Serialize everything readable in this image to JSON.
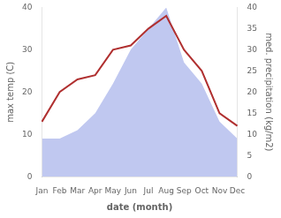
{
  "chart_data": {
    "type": "line",
    "xlabel": "date (month)",
    "ylabel": "max temp (C)",
    "y2label": "med. precipitation (kg/m2)",
    "categories": [
      "Jan",
      "Feb",
      "Mar",
      "Apr",
      "May",
      "Jun",
      "Jul",
      "Aug",
      "Sep",
      "Oct",
      "Nov",
      "Dec"
    ],
    "series": [
      {
        "type": "area",
        "axis": "y2",
        "color": "#c0c8f0",
        "values": [
          9,
          9,
          11,
          15,
          22,
          30,
          35,
          40,
          27,
          22,
          13,
          9
        ]
      },
      {
        "type": "line",
        "color": "#b03030",
        "values": [
          13,
          20,
          23,
          24,
          30,
          31,
          35,
          38,
          30,
          25,
          15,
          12
        ]
      }
    ],
    "ylim": [
      0,
      40
    ],
    "yticks": [
      0,
      10,
      20,
      30,
      40
    ],
    "y2lim": [
      0,
      40
    ],
    "y2ticks": [
      0,
      5,
      10,
      15,
      20,
      25,
      30,
      35,
      40
    ],
    "grid": false
  }
}
